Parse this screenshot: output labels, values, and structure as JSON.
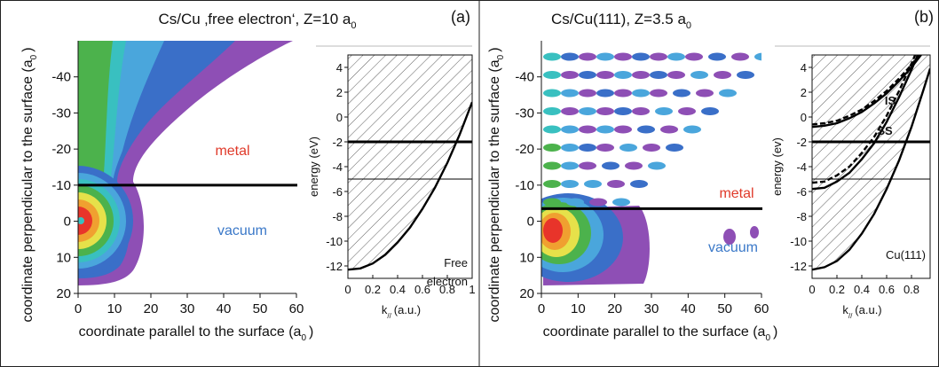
{
  "panels": [
    {
      "tag": "(a)",
      "title": {
        "text": "Cs/Cu ‚free electron‘, Z=10 a",
        "sub": "0"
      },
      "map": {
        "xlabel": {
          "text": "coordinate parallel to the surface (a",
          "sub": "0",
          "end": ")"
        },
        "ylabel": {
          "text": "coordinate perpendicular to the surface (a",
          "sub": "0",
          "end": ")"
        },
        "xlim": [
          0,
          60
        ],
        "ylim": [
          20,
          -50
        ],
        "xticks": [
          0,
          10,
          20,
          30,
          40,
          50,
          60
        ],
        "yticks": [
          -40,
          -30,
          -20,
          -10,
          0,
          10,
          20
        ],
        "surface": -10,
        "annotations": [
          {
            "text": "metal",
            "color": "#e03a2a"
          },
          {
            "text": "vacuum",
            "color": "#3a78c8"
          }
        ]
      },
      "energy": {
        "ylabel": "energy  (eV)",
        "xlabel": {
          "text": "k",
          "sub": "//",
          "end": "(a.u.)"
        },
        "xlim": [
          0,
          1
        ],
        "ylim": [
          -13,
          5
        ],
        "xticks": [
          0,
          0.2,
          0.4,
          0.6,
          0.8,
          1
        ],
        "yticks": [
          4,
          2,
          0,
          -2,
          -4,
          -6,
          -8,
          -10,
          -12
        ],
        "hlines": [
          {
            "value": -2,
            "weight": "thick"
          },
          {
            "value": -5,
            "weight": "thin"
          }
        ],
        "curves": [
          {
            "style": "solid",
            "hatch": true,
            "k": [
              0,
              0.1,
              0.2,
              0.3,
              0.4,
              0.5,
              0.6,
              0.7,
              0.8,
              0.9,
              1
            ],
            "E": [
              -12.3,
              -12.2,
              -11.8,
              -11.1,
              -10.1,
              -8.9,
              -7.4,
              -5.7,
              -3.7,
              -1.4,
              1.2
            ]
          }
        ],
        "notes": [
          "Free",
          "electron"
        ]
      }
    },
    {
      "tag": "(b)",
      "title": {
        "text": "Cs/Cu(111), Z=3.5 a",
        "sub": "0"
      },
      "map": {
        "xlabel": {
          "text": "coordinate parallel to the surface (a",
          "sub": "0",
          "end": ")"
        },
        "ylabel": {
          "text": "coordinate perpendicular to the surface (a",
          "sub": "0",
          "end": ")"
        },
        "xlim": [
          0,
          60
        ],
        "ylim": [
          20,
          -50
        ],
        "xticks": [
          0,
          10,
          20,
          30,
          40,
          50,
          60
        ],
        "yticks": [
          -40,
          -30,
          -20,
          -10,
          0,
          10,
          20
        ],
        "surface": -3.5,
        "annotations": [
          {
            "text": "metal",
            "color": "#e03a2a"
          },
          {
            "text": "vacuum",
            "color": "#3a78c8"
          }
        ]
      },
      "energy": {
        "ylabel": "energy  (ev)",
        "xlabel": {
          "text": "k",
          "sub": "//",
          "end": "(a.u.)"
        },
        "xlim": [
          0,
          0.95
        ],
        "ylim": [
          -13,
          5
        ],
        "xticks": [
          0,
          0.2,
          0.4,
          0.6,
          0.8
        ],
        "yticks": [
          4,
          2,
          0,
          -2,
          -4,
          -6,
          -8,
          -10,
          -12
        ],
        "hlines": [
          {
            "value": -2,
            "weight": "thick"
          },
          {
            "value": -5,
            "weight": "thin"
          }
        ],
        "curves": [
          {
            "style": "solid",
            "hatch": true,
            "k": [
              0,
              0.1,
              0.2,
              0.3,
              0.4,
              0.5,
              0.6,
              0.7,
              0.8,
              0.9,
              0.95
            ],
            "E": [
              -12.3,
              -12.1,
              -11.6,
              -10.7,
              -9.4,
              -7.8,
              -5.8,
              -3.5,
              -0.8,
              2.3,
              3.9
            ]
          },
          {
            "style": "solid",
            "k": [
              0,
              0.1,
              0.2,
              0.3,
              0.4,
              0.5,
              0.6,
              0.7,
              0.8,
              0.85
            ],
            "E": [
              -5.8,
              -5.7,
              -5.2,
              -4.5,
              -3.4,
              -2.1,
              -0.4,
              1.6,
              3.8,
              5
            ]
          },
          {
            "style": "dashed",
            "k": [
              0,
              0.1,
              0.2,
              0.3,
              0.4,
              0.5,
              0.6,
              0.7,
              0.8,
              0.85
            ],
            "E": [
              -5.3,
              -5.2,
              -4.7,
              -4,
              -2.9,
              -1.6,
              0.1,
              2.1,
              4.3,
              5.5
            ]
          },
          {
            "style": "solid",
            "k": [
              0,
              0.1,
              0.2,
              0.3,
              0.4,
              0.5,
              0.6,
              0.7,
              0.8,
              0.9
            ],
            "E": [
              -0.8,
              -0.7,
              -0.5,
              -0.1,
              0.4,
              1.1,
              1.9,
              2.9,
              4,
              5.3
            ]
          },
          {
            "style": "dashed",
            "k": [
              0,
              0.1,
              0.2,
              0.3,
              0.4,
              0.5,
              0.6,
              0.7,
              0.8,
              0.9
            ],
            "E": [
              -0.6,
              -0.5,
              -0.3,
              0.1,
              0.6,
              1.3,
              2.1,
              3.1,
              4.2,
              5.5
            ]
          }
        ],
        "notes": [
          "IS",
          "SS",
          "Cu(111)"
        ]
      }
    }
  ]
}
